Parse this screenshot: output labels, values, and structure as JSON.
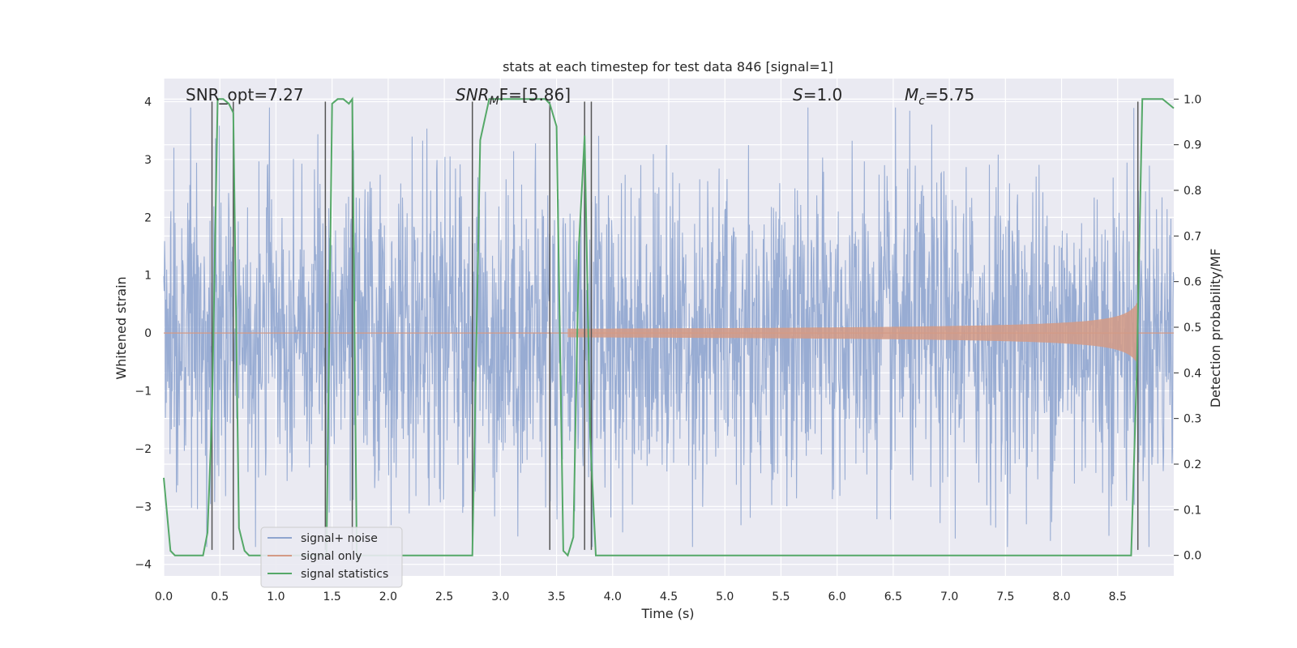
{
  "chart_data": {
    "type": "line",
    "title": "stats at each timestep for test data 846 [signal=1]",
    "xlabel": "Time (s)",
    "ylabel": "Whitened strain",
    "ylabel_right": "Detection probability/MF",
    "xlim": [
      0.0,
      9.0
    ],
    "ylim": [
      -4.2,
      4.4
    ],
    "ylim_right": [
      -0.045,
      1.045
    ],
    "xticks": [
      "0.0",
      "0.5",
      "1.0",
      "1.5",
      "2.0",
      "2.5",
      "3.0",
      "3.5",
      "4.0",
      "4.5",
      "5.0",
      "5.5",
      "6.0",
      "6.5",
      "7.0",
      "7.5",
      "8.0",
      "8.5"
    ],
    "yticks": [
      "4",
      "3",
      "2",
      "1",
      "0",
      "−1",
      "−2",
      "−3",
      "−4"
    ],
    "yticks_right": [
      "1.0",
      "0.9",
      "0.8",
      "0.7",
      "0.6",
      "0.5",
      "0.4",
      "0.3",
      "0.2",
      "0.1",
      "0.0"
    ],
    "grid": true,
    "legend_position": "lower-left",
    "annotations": {
      "snr_opt": "SNR_opt=7.27",
      "snr_mf_prefix": "SNR",
      "snr_mf_sub": "M",
      "snr_mf_rest": "F=[5.86]",
      "s_var": "S",
      "s_rest": "=1.0",
      "mc_var": "M",
      "mc_sub": "c",
      "mc_rest": "=5.75"
    },
    "series": [
      {
        "name": "signal+ noise",
        "color": "#8fa5cf",
        "kind": "noise",
        "amplitude_typical": 2.2,
        "peak_min": -3.7,
        "peak_max": 3.9
      },
      {
        "name": "signal only",
        "color": "#d49a85",
        "kind": "chirp",
        "start_x": 3.6,
        "end_x": 8.68,
        "max_amplitude": 0.55
      },
      {
        "name": "signal statistics",
        "color": "#55a868",
        "axis": "right",
        "x": [
          0.0,
          0.06,
          0.1,
          0.15,
          0.2,
          0.25,
          0.3,
          0.35,
          0.39,
          0.43,
          0.48,
          0.53,
          0.58,
          0.62,
          0.67,
          0.72,
          0.76,
          0.8,
          0.86,
          0.9,
          0.95,
          1.0,
          1.05,
          1.1,
          1.2,
          1.3,
          1.4,
          1.45,
          1.5,
          1.55,
          1.6,
          1.65,
          1.68,
          1.72,
          1.77,
          1.82,
          1.86,
          1.9,
          2.0,
          2.2,
          2.5,
          2.75,
          2.82,
          2.9,
          3.0,
          3.2,
          3.4,
          3.44,
          3.5,
          3.56,
          3.6,
          3.65,
          3.7,
          3.75,
          3.8,
          3.85,
          3.9,
          3.95,
          4.0,
          4.2,
          5.0,
          6.0,
          7.0,
          8.0,
          8.5,
          8.62,
          8.67,
          8.72,
          8.78,
          8.85,
          8.9,
          9.0
        ],
        "y": [
          0.17,
          0.01,
          0.0,
          0.0,
          0.0,
          0.0,
          0.0,
          0.0,
          0.05,
          0.31,
          1.0,
          1.0,
          0.99,
          0.97,
          0.06,
          0.01,
          0.0,
          0.0,
          0.0,
          0.0,
          0.0,
          0.0,
          0.0,
          0.0,
          0.0,
          0.0,
          0.0,
          0.0,
          0.99,
          1.0,
          1.0,
          0.99,
          1.0,
          0.0,
          0.0,
          0.0,
          0.0,
          0.0,
          0.0,
          0.0,
          0.0,
          0.0,
          0.91,
          1.0,
          1.0,
          1.0,
          1.0,
          0.99,
          0.94,
          0.01,
          0.0,
          0.04,
          0.68,
          0.92,
          0.26,
          0.0,
          0.0,
          0.0,
          0.0,
          0.0,
          0.0,
          0.0,
          0.0,
          0.0,
          0.0,
          0.0,
          0.4,
          1.0,
          1.0,
          1.0,
          1.0,
          0.98
        ]
      }
    ],
    "vertical_lines_x": [
      0.43,
      0.62,
      1.44,
      1.68,
      2.75,
      3.44,
      3.75,
      3.81,
      8.68
    ],
    "vertical_lines_color": "#555555"
  }
}
